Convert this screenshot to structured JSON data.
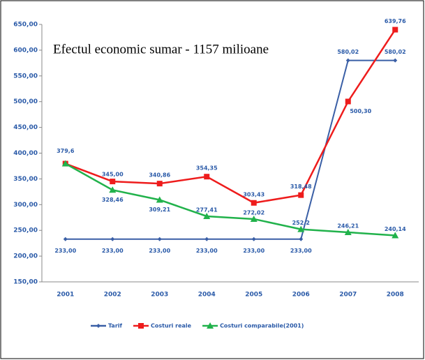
{
  "chart_data": {
    "type": "line",
    "annotation": "Efectul economic sumar - 1157 milioane",
    "categories": [
      "2001",
      "2002",
      "2003",
      "2004",
      "2005",
      "2006",
      "2007",
      "2008"
    ],
    "series": [
      {
        "name": "Tarif",
        "color": "#3a5fa6",
        "marker": "diamond",
        "values": [
          233.0,
          233.0,
          233.0,
          233.0,
          233.0,
          233.0,
          580.02,
          580.02
        ],
        "value_labels": [
          "233,00",
          "233,00",
          "233,00",
          "233,00",
          "233,00",
          "233,00",
          "580,02",
          "580,02"
        ]
      },
      {
        "name": "Costuri reale",
        "color": "#ee1c1c",
        "marker": "square",
        "values": [
          379.6,
          345.0,
          340.86,
          354.35,
          303.43,
          318.48,
          500.3,
          639.76
        ],
        "value_labels": [
          "379,6",
          "345,00",
          "340,86",
          "354,35",
          "303,43",
          "318,48",
          "500,30",
          "639,76"
        ]
      },
      {
        "name": "Costuri comparabile(2001)",
        "color": "#21b24b",
        "marker": "triangle",
        "values": [
          379.6,
          328.46,
          309.21,
          277.41,
          272.02,
          252.2,
          246.21,
          240.14
        ],
        "value_labels": [
          null,
          "328,46",
          "309,21",
          "277,41",
          "272,02",
          "252,2",
          "246,21",
          "240,14"
        ]
      }
    ],
    "ylim": [
      150,
      650
    ],
    "yticks": [
      {
        "value": 150,
        "label": "150,00"
      },
      {
        "value": 200,
        "label": "200,00"
      },
      {
        "value": 250,
        "label": "250,00"
      },
      {
        "value": 300,
        "label": "300,00"
      },
      {
        "value": 350,
        "label": "350,00"
      },
      {
        "value": 400,
        "label": "400,00"
      },
      {
        "value": 450,
        "label": "450,00"
      },
      {
        "value": 500,
        "label": "500,00"
      },
      {
        "value": 550,
        "label": "550,00"
      },
      {
        "value": 600,
        "label": "600,00"
      },
      {
        "value": 650,
        "label": "650,00"
      }
    ],
    "legend": "bottom"
  }
}
